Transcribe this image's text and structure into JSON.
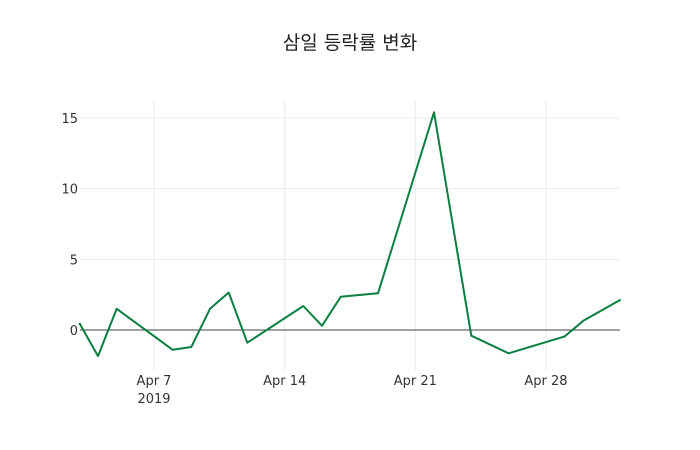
{
  "chart_data": {
    "type": "line",
    "title": "삼일 등락률 변화",
    "xlabel": "",
    "ylabel": "",
    "grid": true,
    "legend": null,
    "line_color": "#0a7f3f",
    "x_tick_labels": [
      "Apr 7",
      "Apr 14",
      "Apr 21",
      "Apr 28"
    ],
    "x_tick_sublabel": "2019",
    "y_tick_labels": [
      "0",
      "5",
      "10",
      "15"
    ],
    "y_ticks": [
      0,
      5,
      10,
      15
    ],
    "ylim": [
      -2.9,
      16.4
    ],
    "xlim": [
      "2019-04-03",
      "2019-05-02"
    ],
    "series": [
      {
        "name": "등락률",
        "x": [
          "2019-04-03",
          "2019-04-04",
          "2019-04-05",
          "2019-04-08",
          "2019-04-09",
          "2019-04-10",
          "2019-04-11",
          "2019-04-12",
          "2019-04-15",
          "2019-04-16",
          "2019-04-17",
          "2019-04-19",
          "2019-04-22",
          "2019-04-24",
          "2019-04-26",
          "2019-04-29",
          "2019-04-30",
          "2019-05-02"
        ],
        "values": [
          0.5,
          -1.85,
          1.5,
          -1.4,
          -1.2,
          1.5,
          2.65,
          -0.9,
          1.7,
          0.3,
          2.35,
          2.6,
          15.4,
          -0.4,
          -1.65,
          -0.45,
          0.65,
          2.15
        ]
      }
    ]
  }
}
